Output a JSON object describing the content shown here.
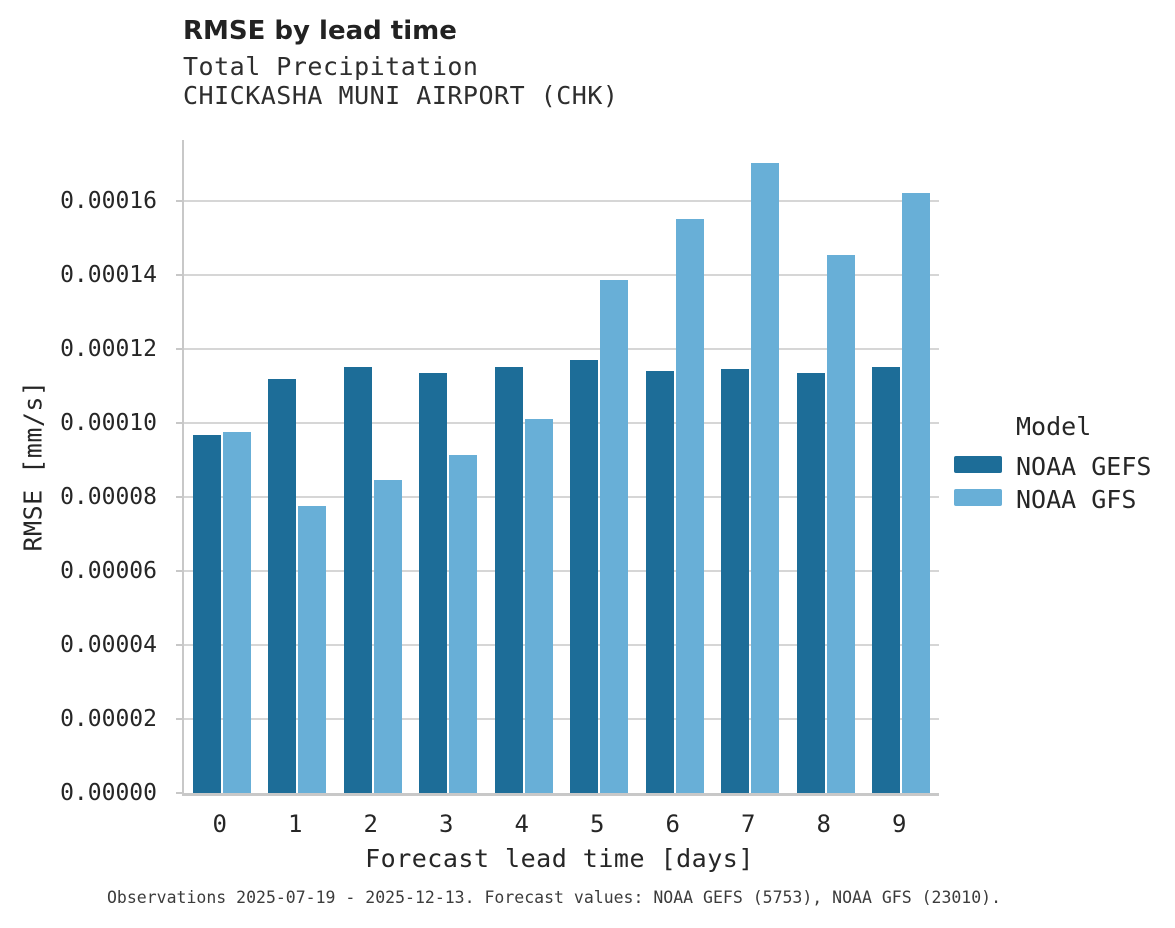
{
  "header": {
    "title": "RMSE by lead time",
    "subtitle": "Total Precipitation",
    "station": "CHICKASHA MUNI AIRPORT (CHK)"
  },
  "chart_data": {
    "type": "bar",
    "title": "RMSE by lead time",
    "subtitle": [
      "Total Precipitation",
      "CHICKASHA MUNI AIRPORT (CHK)"
    ],
    "xlabel": "Forecast lead time [days]",
    "ylabel": "RMSE [mm/s]",
    "categories": [
      "0",
      "1",
      "2",
      "3",
      "4",
      "5",
      "6",
      "7",
      "8",
      "9"
    ],
    "series": [
      {
        "name": "NOAA GEFS",
        "color": "#1d6d98",
        "values": [
          9.68e-05,
          0.0001119,
          0.0001151,
          0.0001134,
          0.0001151,
          0.000117,
          0.0001141,
          0.0001146,
          0.0001134,
          0.0001152
        ]
      },
      {
        "name": "NOAA GFS",
        "color": "#68afd7",
        "values": [
          9.75e-05,
          7.77e-05,
          8.45e-05,
          9.15e-05,
          0.0001011,
          0.0001387,
          0.0001552,
          0.0001704,
          0.0001454,
          0.0001621
        ]
      }
    ],
    "ylim": [
      0,
      0.0001765
    ],
    "ytick_step": 2e-05,
    "yticks": [
      "0.00000",
      "0.00002",
      "0.00004",
      "0.00006",
      "0.00008",
      "0.00010",
      "0.00012",
      "0.00014",
      "0.00016"
    ],
    "grid": true,
    "legend_title": "Model",
    "legend_position": "right"
  },
  "legend": {
    "title": "Model",
    "items": [
      {
        "label": "NOAA GEFS",
        "color": "#1d6d98"
      },
      {
        "label": "NOAA GFS",
        "color": "#68afd7"
      }
    ]
  },
  "footer": {
    "caption": "Observations 2025-07-19 - 2025-12-13. Forecast values: NOAA GEFS (5753), NOAA GFS (23010)."
  }
}
